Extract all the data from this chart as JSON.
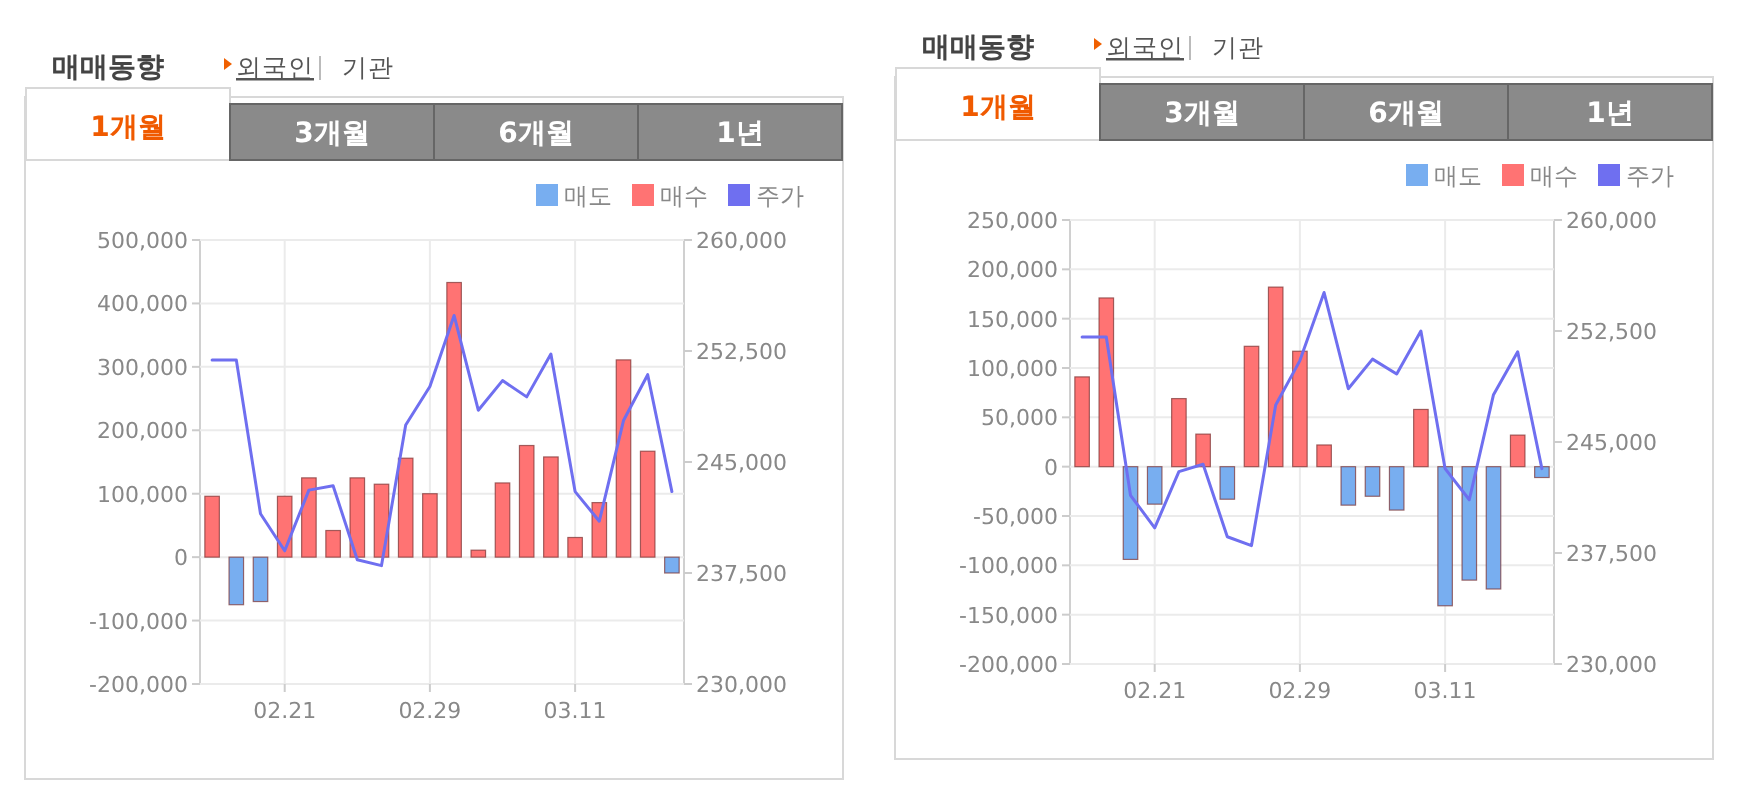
{
  "chart_data": [
    {
      "type": "bar",
      "title": "매매동향",
      "annotations": [
        "외국인",
        "기관",
        "1개월",
        "3개월",
        "6개월",
        "1년"
      ],
      "categories": [
        null,
        null,
        null,
        "02.21",
        null,
        null,
        null,
        null,
        null,
        "02.29",
        null,
        null,
        null,
        null,
        null,
        "03.11",
        null,
        null,
        null,
        null
      ],
      "stacked": true,
      "grid": true,
      "legend": "top right",
      "ylim": [
        -200000,
        500000
      ],
      "yticks": [
        {
          "value": -200000,
          "label": "-200,000"
        },
        {
          "value": -100000,
          "label": "-100,000"
        },
        0,
        {
          "value": 100000,
          "label": "100,000"
        },
        {
          "value": 200000,
          "label": "200,000"
        },
        {
          "value": 300000,
          "label": "300,000"
        },
        {
          "value": 400000,
          "label": "400,000"
        },
        {
          "value": 500000,
          "label": "500,000"
        }
      ],
      "y2lim": [
        230000,
        260000
      ],
      "y2ticks": [
        {
          "value": 230000,
          "label": "230,000"
        },
        {
          "value": 237500,
          "label": "237,500"
        },
        {
          "value": 245000,
          "label": "245,000"
        },
        {
          "value": 252500,
          "label": "252,500"
        },
        {
          "value": 260000,
          "label": "260,000"
        }
      ],
      "series": [
        {
          "name": "매도",
          "color": "#78aef0",
          "values": [
            null,
            -75000,
            -70000,
            null,
            null,
            null,
            null,
            null,
            null,
            null,
            null,
            null,
            null,
            null,
            null,
            null,
            null,
            null,
            null,
            -25000
          ]
        },
        {
          "name": "매수",
          "color": "#ff7373",
          "values": [
            96000,
            null,
            null,
            96000,
            125000,
            42000,
            125000,
            115000,
            156000,
            100000,
            433000,
            11000,
            117000,
            176000,
            158000,
            31000,
            86000,
            311000,
            167000,
            null
          ]
        },
        {
          "name": "주가",
          "type": "line",
          "axis": "y2",
          "color": "#6f6ff0",
          "values": [
            251900,
            251900,
            241500,
            239000,
            243100,
            243400,
            238400,
            238000,
            247500,
            250100,
            254900,
            248500,
            250500,
            249400,
            252300,
            243000,
            241000,
            247800,
            250900,
            243000
          ]
        }
      ]
    },
    {
      "type": "bar",
      "title": "매매동향",
      "annotations": [
        "외국인",
        "기관",
        "1개월",
        "3개월",
        "6개월",
        "1년"
      ],
      "categories": [
        null,
        null,
        null,
        "02.21",
        null,
        null,
        null,
        null,
        null,
        "02.29",
        null,
        null,
        null,
        null,
        null,
        "03.11",
        null,
        null,
        null,
        null
      ],
      "stacked": true,
      "grid": true,
      "legend": "top right",
      "ylim": [
        -200000,
        250000
      ],
      "yticks": [
        {
          "value": -200000,
          "label": "-200,000"
        },
        {
          "value": -150000,
          "label": "-150,000"
        },
        {
          "value": -100000,
          "label": "-100,000"
        },
        {
          "value": -50000,
          "label": "-50,000"
        },
        0,
        {
          "value": 50000,
          "label": "50,000"
        },
        {
          "value": 100000,
          "label": "100,000"
        },
        {
          "value": 150000,
          "label": "150,000"
        },
        {
          "value": 200000,
          "label": "200,000"
        },
        {
          "value": 250000,
          "label": "250,000"
        }
      ],
      "y2lim": [
        230000,
        260000
      ],
      "y2ticks": [
        {
          "value": 230000,
          "label": "230,000"
        },
        {
          "value": 237500,
          "label": "237,500"
        },
        {
          "value": 245000,
          "label": "245,000"
        },
        {
          "value": 252500,
          "label": "252,500"
        },
        {
          "value": 260000,
          "label": "260,000"
        }
      ],
      "series": [
        {
          "name": "매도",
          "color": "#78aef0",
          "values": [
            null,
            null,
            -94000,
            -38000,
            null,
            null,
            -33000,
            null,
            null,
            null,
            null,
            -39000,
            -30000,
            -44000,
            null,
            -141000,
            -115000,
            -124000,
            null,
            -11000
          ]
        },
        {
          "name": "매수",
          "color": "#ff7373",
          "values": [
            91000,
            171000,
            null,
            null,
            69000,
            33000,
            null,
            122000,
            182000,
            117000,
            22000,
            null,
            null,
            null,
            58000,
            null,
            null,
            null,
            32000,
            null
          ]
        },
        {
          "name": "주가",
          "type": "line",
          "axis": "y2",
          "color": "#6f6ff0",
          "values": [
            252100,
            252100,
            241400,
            239200,
            243000,
            243500,
            238600,
            238000,
            247500,
            250500,
            255100,
            248600,
            250600,
            249600,
            252500,
            243200,
            241100,
            248200,
            251100,
            243200
          ]
        }
      ]
    }
  ]
}
